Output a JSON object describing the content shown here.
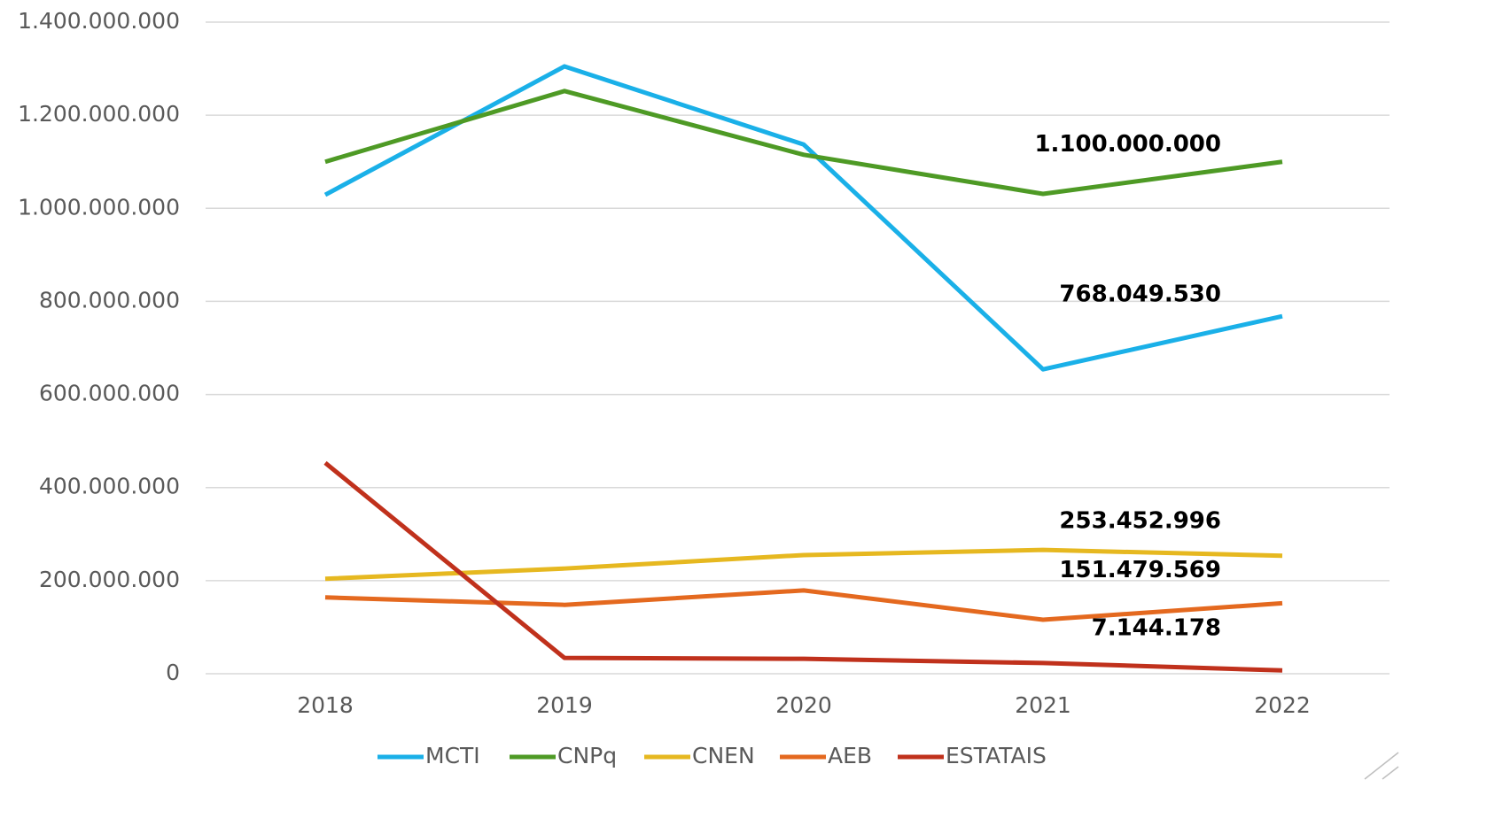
{
  "chart_data": {
    "type": "line",
    "categories": [
      "2018",
      "2019",
      "2020",
      "2021",
      "2022"
    ],
    "series": [
      {
        "name": "MCTI",
        "color": "#1ab0e8",
        "values": [
          1029000000,
          1305000000,
          1137000000,
          654000000,
          768049530
        ],
        "value_labels": [
          null,
          null,
          null,
          null,
          "768.049.530"
        ]
      },
      {
        "name": "CNPq",
        "color": "#4e9a25",
        "values": [
          1100000000,
          1252000000,
          1115000000,
          1031000000,
          1100000000
        ],
        "value_labels": [
          null,
          null,
          null,
          null,
          "1.100.000.000"
        ]
      },
      {
        "name": "CNEN",
        "color": "#e6b820",
        "values": [
          204000000,
          226000000,
          255000000,
          266000000,
          253452996
        ],
        "value_labels": [
          null,
          null,
          null,
          null,
          "253.452.996"
        ]
      },
      {
        "name": "AEB",
        "color": "#e4691f",
        "values": [
          164000000,
          148000000,
          179000000,
          116000000,
          151479569
        ],
        "value_labels": [
          null,
          null,
          null,
          null,
          "151.479.569"
        ]
      },
      {
        "name": "ESTATAIS",
        "color": "#c0311c",
        "values": [
          453000000,
          34000000,
          32000000,
          23000000,
          7144178
        ],
        "value_labels": [
          null,
          null,
          null,
          null,
          "7.144.178"
        ]
      }
    ],
    "ylim": [
      0,
      1400000000
    ],
    "yticks": [
      0,
      {
        "value": 200000000,
        "label": "200.000.000"
      },
      {
        "value": 400000000,
        "label": "400.000.000"
      },
      {
        "value": 600000000,
        "label": "600.000.000"
      },
      {
        "value": 800000000,
        "label": "800.000.000"
      },
      {
        "value": 1000000000,
        "label": "1.000.000.000"
      },
      {
        "value": 1200000000,
        "label": "1.200.000.000"
      },
      {
        "value": 1400000000,
        "label": "1.400.000.000"
      }
    ],
    "grid": true,
    "legend": "bottom"
  }
}
